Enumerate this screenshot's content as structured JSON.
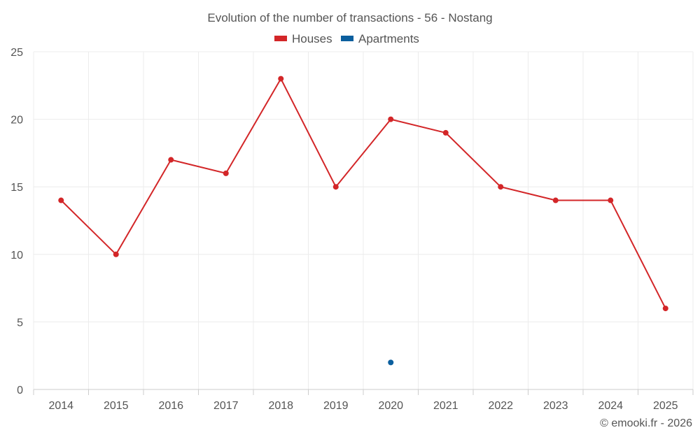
{
  "chart_data": {
    "type": "line",
    "title": "Evolution of the number of transactions - 56 - Nostang",
    "categories": [
      "2014",
      "2015",
      "2016",
      "2017",
      "2018",
      "2019",
      "2020",
      "2021",
      "2022",
      "2023",
      "2024",
      "2025"
    ],
    "series": [
      {
        "name": "Houses",
        "color": "#d32628",
        "values": [
          14,
          10,
          17,
          16,
          23,
          15,
          20,
          19,
          15,
          14,
          14,
          6
        ]
      },
      {
        "name": "Apartments",
        "color": "#0b5f9e",
        "values": [
          null,
          null,
          null,
          null,
          null,
          null,
          2,
          null,
          null,
          null,
          null,
          null
        ]
      }
    ],
    "ylim": [
      0,
      25
    ],
    "yticks": [
      "0",
      "5",
      "10",
      "15",
      "20",
      "25"
    ],
    "grid": true,
    "legend": "top-center"
  },
  "credit": "© emooki.fr - 2026"
}
